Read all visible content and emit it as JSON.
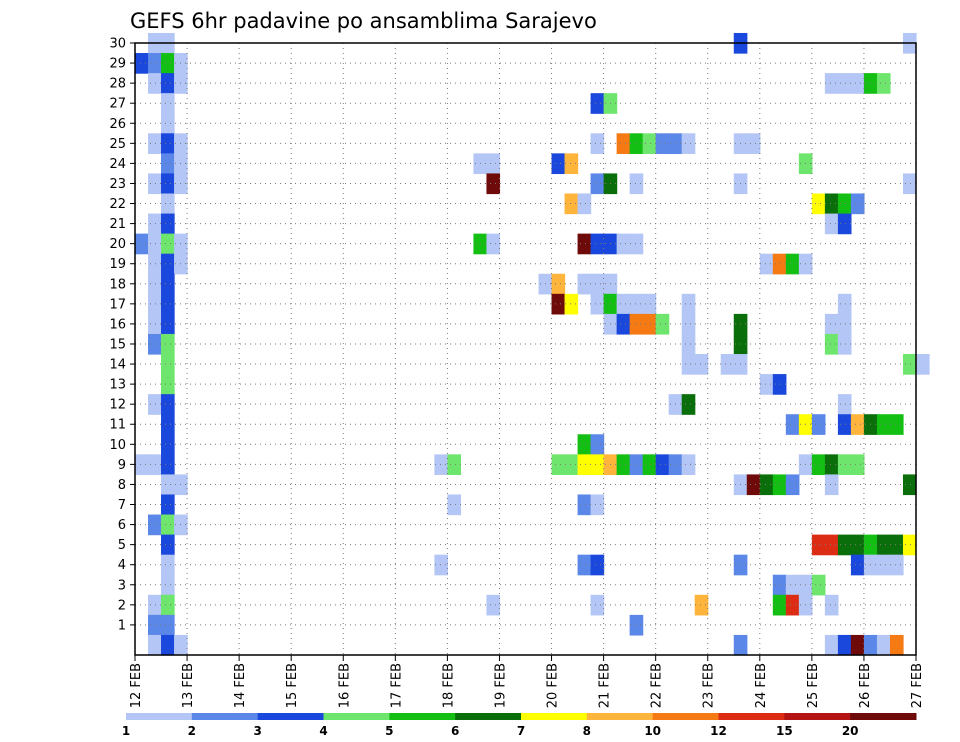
{
  "chart_data": {
    "type": "heatmap",
    "title": "GEFS 6hr padavine po ansamblima Sarajevo",
    "xlabel": "",
    "ylabel": "",
    "x_tick_labels": [
      "12 FEB",
      "13 FEB",
      "14 FEB",
      "15 FEB",
      "16 FEB",
      "17 FEB",
      "18 FEB",
      "19 FEB",
      "20 FEB",
      "21 FEB",
      "22 FEB",
      "23 FEB",
      "24 FEB",
      "25 FEB",
      "26 FEB",
      "27 FEB"
    ],
    "y_tick_labels": [
      "1",
      "2",
      "3",
      "4",
      "5",
      "6",
      "7",
      "8",
      "9",
      "10",
      "11",
      "12",
      "13",
      "14",
      "15",
      "16",
      "17",
      "18",
      "19",
      "20",
      "21",
      "22",
      "23",
      "24",
      "25",
      "26",
      "27",
      "28",
      "29",
      "30"
    ],
    "xlim": [
      "12 FEB 00z",
      "27 FEB 00z"
    ],
    "ylim": [
      0,
      30
    ],
    "grid": true,
    "time_step_hours": 6,
    "legend": {
      "placement": "bottom",
      "thresholds": [
        "1",
        "2",
        "3",
        "4",
        "5",
        "6",
        "7",
        "8",
        "10",
        "12",
        "15",
        "20"
      ],
      "colors": [
        "#b4c6f5",
        "#5a87e8",
        "#1a47dc",
        "#6ee66e",
        "#14bf14",
        "#0a6e0a",
        "#ffff00",
        "#ffb43c",
        "#f57a14",
        "#dc2d14",
        "#b41414",
        "#6e0a0a"
      ]
    },
    "cells": [
      {
        "member": 30,
        "t": "12 FEB 06z",
        "bin": 1
      },
      {
        "member": 30,
        "t": "12 FEB 12z",
        "bin": 1
      },
      {
        "member": 30,
        "t": "23 FEB 12z",
        "bin": 3
      },
      {
        "member": 30,
        "t": "26 FEB 18z",
        "bin": 1
      },
      {
        "member": 29,
        "t": "12 FEB 00z",
        "bin": 3
      },
      {
        "member": 29,
        "t": "12 FEB 06z",
        "bin": 2
      },
      {
        "member": 29,
        "t": "12 FEB 12z",
        "bin": 5
      },
      {
        "member": 29,
        "t": "12 FEB 18z",
        "bin": 1
      },
      {
        "member": 28,
        "t": "12 FEB 06z",
        "bin": 1
      },
      {
        "member": 28,
        "t": "12 FEB 12z",
        "bin": 3
      },
      {
        "member": 28,
        "t": "12 FEB 18z",
        "bin": 1
      },
      {
        "member": 28,
        "t": "25 FEB 06z",
        "bin": 1
      },
      {
        "member": 28,
        "t": "25 FEB 12z",
        "bin": 1
      },
      {
        "member": 28,
        "t": "25 FEB 18z",
        "bin": 1
      },
      {
        "member": 28,
        "t": "26 FEB 00z",
        "bin": 5
      },
      {
        "member": 28,
        "t": "26 FEB 06z",
        "bin": 4
      },
      {
        "member": 27,
        "t": "12 FEB 12z",
        "bin": 1
      },
      {
        "member": 27,
        "t": "20 FEB 18z",
        "bin": 3
      },
      {
        "member": 27,
        "t": "21 FEB 00z",
        "bin": 4
      },
      {
        "member": 26,
        "t": "12 FEB 12z",
        "bin": 1
      },
      {
        "member": 25,
        "t": "12 FEB 06z",
        "bin": 1
      },
      {
        "member": 25,
        "t": "12 FEB 12z",
        "bin": 3
      },
      {
        "member": 25,
        "t": "12 FEB 18z",
        "bin": 1
      },
      {
        "member": 25,
        "t": "20 FEB 18z",
        "bin": 1
      },
      {
        "member": 25,
        "t": "21 FEB 06z",
        "bin": 9
      },
      {
        "member": 25,
        "t": "21 FEB 12z",
        "bin": 5
      },
      {
        "member": 25,
        "t": "21 FEB 18z",
        "bin": 4
      },
      {
        "member": 25,
        "t": "22 FEB 00z",
        "bin": 2
      },
      {
        "member": 25,
        "t": "22 FEB 06z",
        "bin": 2
      },
      {
        "member": 25,
        "t": "22 FEB 12z",
        "bin": 1
      },
      {
        "member": 25,
        "t": "23 FEB 12z",
        "bin": 1
      },
      {
        "member": 25,
        "t": "23 FEB 18z",
        "bin": 1
      },
      {
        "member": 24,
        "t": "12 FEB 12z",
        "bin": 2
      },
      {
        "member": 24,
        "t": "12 FEB 18z",
        "bin": 1
      },
      {
        "member": 24,
        "t": "18 FEB 12z",
        "bin": 1
      },
      {
        "member": 24,
        "t": "18 FEB 18z",
        "bin": 1
      },
      {
        "member": 24,
        "t": "20 FEB 00z",
        "bin": 3
      },
      {
        "member": 24,
        "t": "20 FEB 06z",
        "bin": 8
      },
      {
        "member": 24,
        "t": "24 FEB 18z",
        "bin": 4
      },
      {
        "member": 23,
        "t": "12 FEB 06z",
        "bin": 1
      },
      {
        "member": 23,
        "t": "12 FEB 12z",
        "bin": 3
      },
      {
        "member": 23,
        "t": "12 FEB 18z",
        "bin": 1
      },
      {
        "member": 23,
        "t": "18 FEB 18z",
        "bin": 12
      },
      {
        "member": 23,
        "t": "20 FEB 18z",
        "bin": 2
      },
      {
        "member": 23,
        "t": "21 FEB 00z",
        "bin": 6
      },
      {
        "member": 23,
        "t": "21 FEB 12z",
        "bin": 1
      },
      {
        "member": 23,
        "t": "23 FEB 12z",
        "bin": 1
      },
      {
        "member": 23,
        "t": "26 FEB 18z",
        "bin": 1
      },
      {
        "member": 22,
        "t": "12 FEB 12z",
        "bin": 1
      },
      {
        "member": 22,
        "t": "20 FEB 06z",
        "bin": 8
      },
      {
        "member": 22,
        "t": "20 FEB 12z",
        "bin": 1
      },
      {
        "member": 22,
        "t": "25 FEB 00z",
        "bin": 7
      },
      {
        "member": 22,
        "t": "25 FEB 06z",
        "bin": 6
      },
      {
        "member": 22,
        "t": "25 FEB 12z",
        "bin": 5
      },
      {
        "member": 22,
        "t": "25 FEB 18z",
        "bin": 2
      },
      {
        "member": 21,
        "t": "12 FEB 06z",
        "bin": 1
      },
      {
        "member": 21,
        "t": "12 FEB 12z",
        "bin": 3
      },
      {
        "member": 21,
        "t": "25 FEB 06z",
        "bin": 1
      },
      {
        "member": 21,
        "t": "25 FEB 12z",
        "bin": 3
      },
      {
        "member": 20,
        "t": "12 FEB 00z",
        "bin": 2
      },
      {
        "member": 20,
        "t": "12 FEB 06z",
        "bin": 1
      },
      {
        "member": 20,
        "t": "12 FEB 12z",
        "bin": 4
      },
      {
        "member": 20,
        "t": "12 FEB 18z",
        "bin": 1
      },
      {
        "member": 20,
        "t": "18 FEB 12z",
        "bin": 5
      },
      {
        "member": 20,
        "t": "18 FEB 18z",
        "bin": 1
      },
      {
        "member": 20,
        "t": "20 FEB 12z",
        "bin": 12
      },
      {
        "member": 20,
        "t": "20 FEB 18z",
        "bin": 3
      },
      {
        "member": 20,
        "t": "21 FEB 00z",
        "bin": 3
      },
      {
        "member": 20,
        "t": "21 FEB 06z",
        "bin": 1
      },
      {
        "member": 20,
        "t": "21 FEB 12z",
        "bin": 1
      },
      {
        "member": 19,
        "t": "12 FEB 06z",
        "bin": 1
      },
      {
        "member": 19,
        "t": "12 FEB 12z",
        "bin": 3
      },
      {
        "member": 19,
        "t": "12 FEB 18z",
        "bin": 1
      },
      {
        "member": 19,
        "t": "24 FEB 00z",
        "bin": 1
      },
      {
        "member": 19,
        "t": "24 FEB 06z",
        "bin": 9
      },
      {
        "member": 19,
        "t": "24 FEB 12z",
        "bin": 5
      },
      {
        "member": 19,
        "t": "24 FEB 18z",
        "bin": 1
      },
      {
        "member": 18,
        "t": "12 FEB 06z",
        "bin": 1
      },
      {
        "member": 18,
        "t": "12 FEB 12z",
        "bin": 3
      },
      {
        "member": 18,
        "t": "19 FEB 18z",
        "bin": 1
      },
      {
        "member": 18,
        "t": "20 FEB 00z",
        "bin": 8
      },
      {
        "member": 18,
        "t": "20 FEB 12z",
        "bin": 1
      },
      {
        "member": 18,
        "t": "20 FEB 18z",
        "bin": 1
      },
      {
        "member": 18,
        "t": "21 FEB 00z",
        "bin": 1
      },
      {
        "member": 17,
        "t": "12 FEB 06z",
        "bin": 1
      },
      {
        "member": 17,
        "t": "12 FEB 12z",
        "bin": 3
      },
      {
        "member": 17,
        "t": "20 FEB 00z",
        "bin": 12
      },
      {
        "member": 17,
        "t": "20 FEB 06z",
        "bin": 7
      },
      {
        "member": 17,
        "t": "20 FEB 18z",
        "bin": 1
      },
      {
        "member": 17,
        "t": "21 FEB 00z",
        "bin": 5
      },
      {
        "member": 17,
        "t": "21 FEB 06z",
        "bin": 1
      },
      {
        "member": 17,
        "t": "21 FEB 12z",
        "bin": 1
      },
      {
        "member": 17,
        "t": "21 FEB 18z",
        "bin": 1
      },
      {
        "member": 17,
        "t": "22 FEB 12z",
        "bin": 1
      },
      {
        "member": 17,
        "t": "25 FEB 12z",
        "bin": 1
      },
      {
        "member": 16,
        "t": "12 FEB 06z",
        "bin": 1
      },
      {
        "member": 16,
        "t": "12 FEB 12z",
        "bin": 3
      },
      {
        "member": 16,
        "t": "21 FEB 00z",
        "bin": 1
      },
      {
        "member": 16,
        "t": "21 FEB 06z",
        "bin": 3
      },
      {
        "member": 16,
        "t": "21 FEB 12z",
        "bin": 9
      },
      {
        "member": 16,
        "t": "21 FEB 18z",
        "bin": 9
      },
      {
        "member": 16,
        "t": "22 FEB 00z",
        "bin": 4
      },
      {
        "member": 16,
        "t": "22 FEB 12z",
        "bin": 1
      },
      {
        "member": 16,
        "t": "23 FEB 12z",
        "bin": 6
      },
      {
        "member": 16,
        "t": "25 FEB 06z",
        "bin": 1
      },
      {
        "member": 16,
        "t": "25 FEB 12z",
        "bin": 1
      },
      {
        "member": 15,
        "t": "12 FEB 06z",
        "bin": 2
      },
      {
        "member": 15,
        "t": "12 FEB 12z",
        "bin": 4
      },
      {
        "member": 15,
        "t": "22 FEB 12z",
        "bin": 1
      },
      {
        "member": 15,
        "t": "23 FEB 12z",
        "bin": 6
      },
      {
        "member": 15,
        "t": "25 FEB 06z",
        "bin": 4
      },
      {
        "member": 15,
        "t": "25 FEB 12z",
        "bin": 1
      },
      {
        "member": 14,
        "t": "12 FEB 12z",
        "bin": 4
      },
      {
        "member": 14,
        "t": "22 FEB 12z",
        "bin": 1
      },
      {
        "member": 14,
        "t": "22 FEB 18z",
        "bin": 1
      },
      {
        "member": 14,
        "t": "23 FEB 06z",
        "bin": 1
      },
      {
        "member": 14,
        "t": "23 FEB 12z",
        "bin": 1
      },
      {
        "member": 14,
        "t": "26 FEB 18z",
        "bin": 4
      },
      {
        "member": 14,
        "t": "27 FEB 00z",
        "bin": 1
      },
      {
        "member": 13,
        "t": "12 FEB 12z",
        "bin": 4
      },
      {
        "member": 13,
        "t": "24 FEB 00z",
        "bin": 1
      },
      {
        "member": 13,
        "t": "24 FEB 06z",
        "bin": 3
      },
      {
        "member": 12,
        "t": "12 FEB 06z",
        "bin": 1
      },
      {
        "member": 12,
        "t": "12 FEB 12z",
        "bin": 3
      },
      {
        "member": 12,
        "t": "22 FEB 06z",
        "bin": 1
      },
      {
        "member": 12,
        "t": "22 FEB 12z",
        "bin": 6
      },
      {
        "member": 12,
        "t": "25 FEB 12z",
        "bin": 1
      },
      {
        "member": 11,
        "t": "12 FEB 12z",
        "bin": 3
      },
      {
        "member": 11,
        "t": "24 FEB 12z",
        "bin": 2
      },
      {
        "member": 11,
        "t": "24 FEB 18z",
        "bin": 7
      },
      {
        "member": 11,
        "t": "25 FEB 00z",
        "bin": 2
      },
      {
        "member": 11,
        "t": "25 FEB 12z",
        "bin": 3
      },
      {
        "member": 11,
        "t": "25 FEB 18z",
        "bin": 8
      },
      {
        "member": 11,
        "t": "26 FEB 00z",
        "bin": 6
      },
      {
        "member": 11,
        "t": "26 FEB 06z",
        "bin": 5
      },
      {
        "member": 11,
        "t": "26 FEB 12z",
        "bin": 5
      },
      {
        "member": 10,
        "t": "12 FEB 12z",
        "bin": 3
      },
      {
        "member": 10,
        "t": "20 FEB 12z",
        "bin": 5
      },
      {
        "member": 10,
        "t": "20 FEB 18z",
        "bin": 2
      },
      {
        "member": 9,
        "t": "12 FEB 00z",
        "bin": 1
      },
      {
        "member": 9,
        "t": "12 FEB 06z",
        "bin": 1
      },
      {
        "member": 9,
        "t": "12 FEB 12z",
        "bin": 3
      },
      {
        "member": 9,
        "t": "17 FEB 18z",
        "bin": 1
      },
      {
        "member": 9,
        "t": "18 FEB 00z",
        "bin": 4
      },
      {
        "member": 9,
        "t": "20 FEB 00z",
        "bin": 4
      },
      {
        "member": 9,
        "t": "20 FEB 06z",
        "bin": 4
      },
      {
        "member": 9,
        "t": "20 FEB 12z",
        "bin": 7
      },
      {
        "member": 9,
        "t": "20 FEB 18z",
        "bin": 7
      },
      {
        "member": 9,
        "t": "21 FEB 00z",
        "bin": 8
      },
      {
        "member": 9,
        "t": "21 FEB 06z",
        "bin": 5
      },
      {
        "member": 9,
        "t": "21 FEB 12z",
        "bin": 2
      },
      {
        "member": 9,
        "t": "21 FEB 18z",
        "bin": 5
      },
      {
        "member": 9,
        "t": "22 FEB 00z",
        "bin": 3
      },
      {
        "member": 9,
        "t": "22 FEB 06z",
        "bin": 2
      },
      {
        "member": 9,
        "t": "22 FEB 12z",
        "bin": 1
      },
      {
        "member": 9,
        "t": "24 FEB 18z",
        "bin": 1
      },
      {
        "member": 9,
        "t": "25 FEB 00z",
        "bin": 5
      },
      {
        "member": 9,
        "t": "25 FEB 06z",
        "bin": 6
      },
      {
        "member": 9,
        "t": "25 FEB 12z",
        "bin": 4
      },
      {
        "member": 9,
        "t": "25 FEB 18z",
        "bin": 4
      },
      {
        "member": 8,
        "t": "12 FEB 12z",
        "bin": 1
      },
      {
        "member": 8,
        "t": "12 FEB 18z",
        "bin": 1
      },
      {
        "member": 8,
        "t": "23 FEB 12z",
        "bin": 1
      },
      {
        "member": 8,
        "t": "23 FEB 18z",
        "bin": 12
      },
      {
        "member": 8,
        "t": "24 FEB 00z",
        "bin": 6
      },
      {
        "member": 8,
        "t": "24 FEB 06z",
        "bin": 5
      },
      {
        "member": 8,
        "t": "24 FEB 12z",
        "bin": 2
      },
      {
        "member": 8,
        "t": "25 FEB 06z",
        "bin": 1
      },
      {
        "member": 8,
        "t": "26 FEB 18z",
        "bin": 6
      },
      {
        "member": 7,
        "t": "12 FEB 12z",
        "bin": 3
      },
      {
        "member": 7,
        "t": "18 FEB 00z",
        "bin": 1
      },
      {
        "member": 7,
        "t": "20 FEB 12z",
        "bin": 2
      },
      {
        "member": 7,
        "t": "20 FEB 18z",
        "bin": 1
      },
      {
        "member": 6,
        "t": "12 FEB 06z",
        "bin": 2
      },
      {
        "member": 6,
        "t": "12 FEB 12z",
        "bin": 4
      },
      {
        "member": 6,
        "t": "12 FEB 18z",
        "bin": 1
      },
      {
        "member": 5,
        "t": "12 FEB 12z",
        "bin": 3
      },
      {
        "member": 5,
        "t": "25 FEB 00z",
        "bin": 10
      },
      {
        "member": 5,
        "t": "25 FEB 06z",
        "bin": 10
      },
      {
        "member": 5,
        "t": "25 FEB 12z",
        "bin": 6
      },
      {
        "member": 5,
        "t": "25 FEB 18z",
        "bin": 6
      },
      {
        "member": 5,
        "t": "26 FEB 00z",
        "bin": 5
      },
      {
        "member": 5,
        "t": "26 FEB 06z",
        "bin": 6
      },
      {
        "member": 5,
        "t": "26 FEB 12z",
        "bin": 6
      },
      {
        "member": 5,
        "t": "26 FEB 18z",
        "bin": 7
      },
      {
        "member": 4,
        "t": "12 FEB 12z",
        "bin": 1
      },
      {
        "member": 4,
        "t": "17 FEB 18z",
        "bin": 1
      },
      {
        "member": 4,
        "t": "20 FEB 12z",
        "bin": 2
      },
      {
        "member": 4,
        "t": "20 FEB 18z",
        "bin": 3
      },
      {
        "member": 4,
        "t": "23 FEB 12z",
        "bin": 2
      },
      {
        "member": 4,
        "t": "25 FEB 18z",
        "bin": 3
      },
      {
        "member": 4,
        "t": "26 FEB 00z",
        "bin": 1
      },
      {
        "member": 4,
        "t": "26 FEB 06z",
        "bin": 1
      },
      {
        "member": 4,
        "t": "26 FEB 12z",
        "bin": 1
      },
      {
        "member": 3,
        "t": "12 FEB 12z",
        "bin": 1
      },
      {
        "member": 3,
        "t": "24 FEB 06z",
        "bin": 2
      },
      {
        "member": 3,
        "t": "24 FEB 12z",
        "bin": 1
      },
      {
        "member": 3,
        "t": "24 FEB 18z",
        "bin": 1
      },
      {
        "member": 3,
        "t": "25 FEB 00z",
        "bin": 4
      },
      {
        "member": 2,
        "t": "12 FEB 06z",
        "bin": 1
      },
      {
        "member": 2,
        "t": "12 FEB 12z",
        "bin": 4
      },
      {
        "member": 2,
        "t": "18 FEB 18z",
        "bin": 1
      },
      {
        "member": 2,
        "t": "20 FEB 18z",
        "bin": 1
      },
      {
        "member": 2,
        "t": "22 FEB 18z",
        "bin": 8
      },
      {
        "member": 2,
        "t": "24 FEB 06z",
        "bin": 5
      },
      {
        "member": 2,
        "t": "24 FEB 12z",
        "bin": 10
      },
      {
        "member": 2,
        "t": "24 FEB 18z",
        "bin": 1
      },
      {
        "member": 2,
        "t": "25 FEB 06z",
        "bin": 1
      },
      {
        "member": 1,
        "t": "12 FEB 06z",
        "bin": 2
      },
      {
        "member": 1,
        "t": "12 FEB 12z",
        "bin": 2
      },
      {
        "member": 1,
        "t": "21 FEB 12z",
        "bin": 2
      },
      {
        "member": 0,
        "t": "12 FEB 06z",
        "bin": 1
      },
      {
        "member": 0,
        "t": "12 FEB 12z",
        "bin": 3
      },
      {
        "member": 0,
        "t": "12 FEB 18z",
        "bin": 1
      },
      {
        "member": 0,
        "t": "23 FEB 12z",
        "bin": 2
      },
      {
        "member": 0,
        "t": "25 FEB 06z",
        "bin": 1
      },
      {
        "member": 0,
        "t": "25 FEB 12z",
        "bin": 3
      },
      {
        "member": 0,
        "t": "25 FEB 18z",
        "bin": 12
      },
      {
        "member": 0,
        "t": "26 FEB 00z",
        "bin": 2
      },
      {
        "member": 0,
        "t": "26 FEB 06z",
        "bin": 1
      },
      {
        "member": 0,
        "t": "26 FEB 12z",
        "bin": 9
      }
    ]
  }
}
